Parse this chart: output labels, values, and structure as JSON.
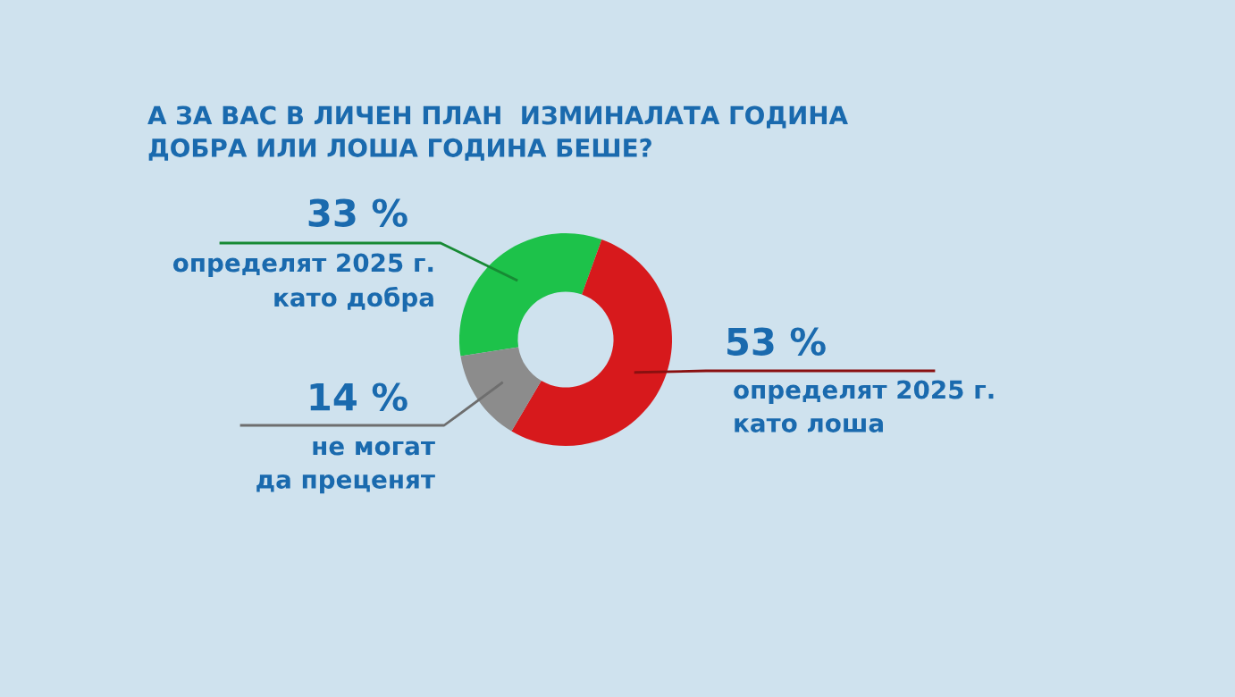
{
  "chart_data": {
    "type": "donut",
    "title": "А ЗА ВАС В ЛИЧЕН ПЛАН  ИЗМИНАЛАТА ГОДИНА\nДОБРА ИЛИ ЛОША ГОДИНА БЕШЕ?",
    "categories": [
      "определят 2025 г.\nкато добра",
      "определят 2025 г.\nкато лоша",
      "не могат\nда преценят"
    ],
    "values": [
      33,
      53,
      14
    ],
    "colors": [
      "#1dc24a",
      "#d7191c",
      "#8c8c8c"
    ],
    "value_labels": [
      "33 %",
      "53 %",
      "14 %"
    ]
  }
}
